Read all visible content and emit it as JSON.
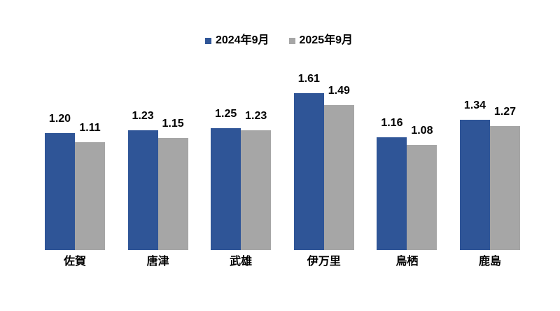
{
  "chart_data": {
    "type": "bar",
    "title": "",
    "xlabel": "",
    "ylabel": "",
    "categories": [
      "佐賀",
      "唐津",
      "武雄",
      "伊万里",
      "鳥栖",
      "鹿島"
    ],
    "series": [
      {
        "name": "2024年9月",
        "color": "#2F5597",
        "values": [
          1.2,
          1.23,
          1.25,
          1.61,
          1.16,
          1.34
        ]
      },
      {
        "name": "2025年9月",
        "color": "#A6A6A6",
        "values": [
          1.11,
          1.15,
          1.23,
          1.49,
          1.08,
          1.27
        ]
      }
    ],
    "ylim": [
      0,
      1.8
    ],
    "grid": false,
    "axes_visible": false,
    "legend_position": "top",
    "value_labels": true,
    "value_decimals": 2,
    "text_color": "#000000",
    "background_color": "#FFFFFF"
  }
}
